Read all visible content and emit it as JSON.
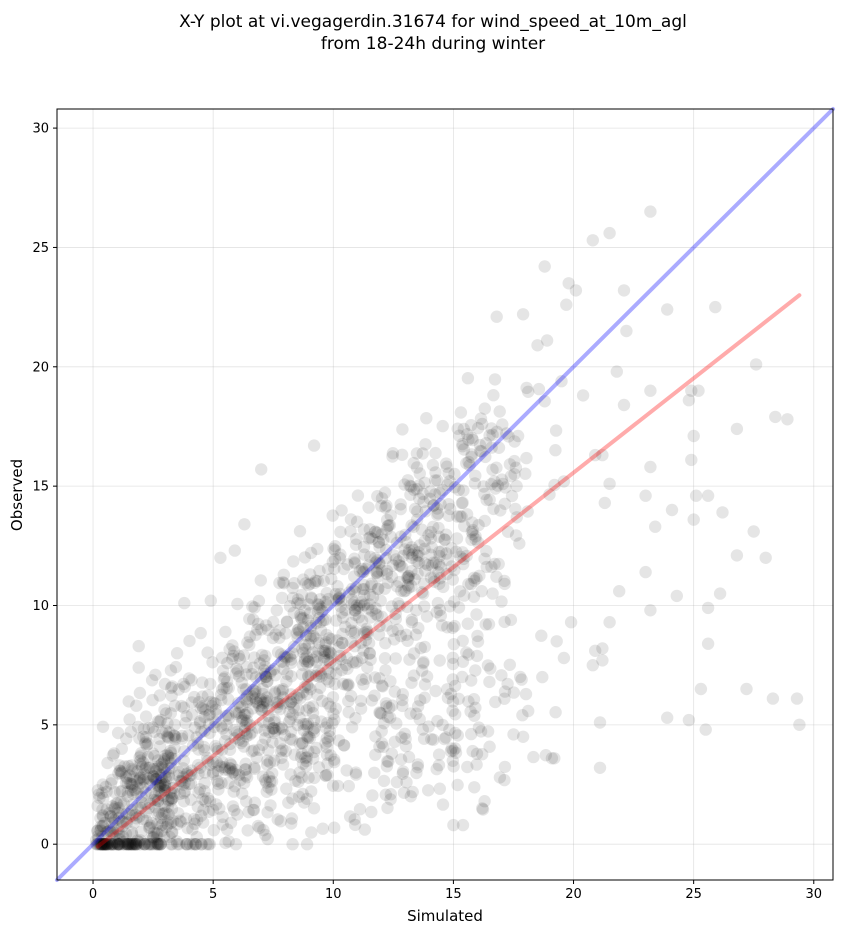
{
  "chart_data": {
    "type": "scatter",
    "title": [
      "X-Y plot at vi.vegagerdin.31674 for wind_speed_at_10m_agl",
      "from 18-24h during winter"
    ],
    "xlabel": "Simulated",
    "ylabel": "Observed",
    "xlim": [
      -1.5,
      30.8
    ],
    "ylim": [
      -1.5,
      30.8
    ],
    "xticks": [
      0,
      5,
      10,
      15,
      20,
      25,
      30
    ],
    "yticks": [
      0,
      5,
      10,
      15,
      20,
      25,
      30
    ],
    "grid": true,
    "point_color": "#000000",
    "point_alpha": 0.1,
    "lines": [
      {
        "color": "#0000ff",
        "alpha": 0.33,
        "x": [
          -1.5,
          30.8
        ],
        "y": [
          -1.5,
          30.8
        ]
      },
      {
        "color": "#ff0000",
        "alpha": 0.33,
        "x": [
          0.2,
          29.4
        ],
        "y": [
          -0.1,
          23.0
        ]
      }
    ],
    "outlier_points": [
      [
        23.2,
        26.5
      ],
      [
        21.5,
        25.6
      ],
      [
        20.8,
        25.3
      ],
      [
        18.8,
        24.2
      ],
      [
        22.1,
        23.2
      ],
      [
        19.8,
        23.5
      ],
      [
        20.1,
        23.2
      ],
      [
        19.7,
        22.6
      ],
      [
        23.9,
        22.4
      ],
      [
        25.9,
        22.5
      ],
      [
        17.9,
        22.2
      ],
      [
        16.8,
        22.1
      ],
      [
        22.2,
        21.5
      ],
      [
        18.9,
        21.1
      ],
      [
        18.5,
        20.9
      ],
      [
        27.6,
        20.1
      ],
      [
        21.8,
        19.8
      ],
      [
        24.9,
        19.0
      ],
      [
        23.2,
        19.0
      ],
      [
        25.2,
        19.0
      ],
      [
        20.4,
        18.8
      ],
      [
        22.1,
        18.4
      ],
      [
        24.8,
        18.6
      ],
      [
        26.8,
        17.4
      ],
      [
        28.4,
        17.9
      ],
      [
        28.9,
        17.8
      ],
      [
        25.0,
        17.1
      ],
      [
        20.9,
        16.3
      ],
      [
        21.2,
        16.3
      ],
      [
        24.9,
        16.1
      ],
      [
        19.6,
        15.2
      ],
      [
        21.5,
        15.1
      ],
      [
        23.2,
        15.8
      ],
      [
        21.3,
        14.3
      ],
      [
        23.0,
        14.6
      ],
      [
        24.1,
        14.0
      ],
      [
        25.1,
        14.6
      ],
      [
        25.6,
        14.6
      ],
      [
        26.2,
        13.9
      ],
      [
        25.0,
        13.6
      ],
      [
        23.4,
        13.3
      ],
      [
        27.5,
        13.1
      ],
      [
        26.8,
        12.1
      ],
      [
        28.0,
        12.0
      ],
      [
        23.0,
        11.4
      ],
      [
        21.9,
        10.6
      ],
      [
        24.3,
        10.4
      ],
      [
        26.1,
        10.5
      ],
      [
        25.6,
        9.9
      ],
      [
        23.2,
        9.8
      ],
      [
        21.5,
        9.3
      ],
      [
        19.9,
        9.3
      ],
      [
        20.9,
        8.1
      ],
      [
        21.2,
        8.2
      ],
      [
        25.6,
        8.4
      ],
      [
        19.3,
        8.5
      ],
      [
        19.6,
        7.8
      ],
      [
        21.2,
        7.7
      ],
      [
        20.8,
        7.5
      ],
      [
        18.7,
        7.0
      ],
      [
        25.3,
        6.5
      ],
      [
        27.2,
        6.5
      ],
      [
        28.3,
        6.1
      ],
      [
        29.3,
        6.1
      ],
      [
        23.9,
        5.3
      ],
      [
        24.8,
        5.2
      ],
      [
        29.4,
        5.0
      ],
      [
        21.1,
        5.1
      ],
      [
        25.5,
        4.8
      ],
      [
        19.1,
        3.6
      ],
      [
        19.2,
        3.6
      ],
      [
        21.1,
        3.2
      ],
      [
        17.9,
        4.5
      ],
      [
        17.5,
        4.6
      ],
      [
        15.4,
        0.8
      ],
      [
        15.0,
        0.8
      ],
      [
        16.3,
        1.8
      ],
      [
        16.2,
        1.5
      ],
      [
        7.0,
        15.7
      ],
      [
        9.2,
        16.7
      ],
      [
        6.3,
        13.4
      ],
      [
        5.9,
        12.3
      ],
      [
        5.3,
        12.0
      ],
      [
        3.8,
        10.1
      ],
      [
        4.9,
        10.2
      ],
      [
        1.9,
        8.3
      ],
      [
        3.5,
        8.0
      ],
      [
        1.9,
        7.4
      ],
      [
        1.8,
        5.8
      ],
      [
        0.6,
        3.4
      ]
    ],
    "dense_points": {
      "count": 1700,
      "seed": 31674
    }
  }
}
